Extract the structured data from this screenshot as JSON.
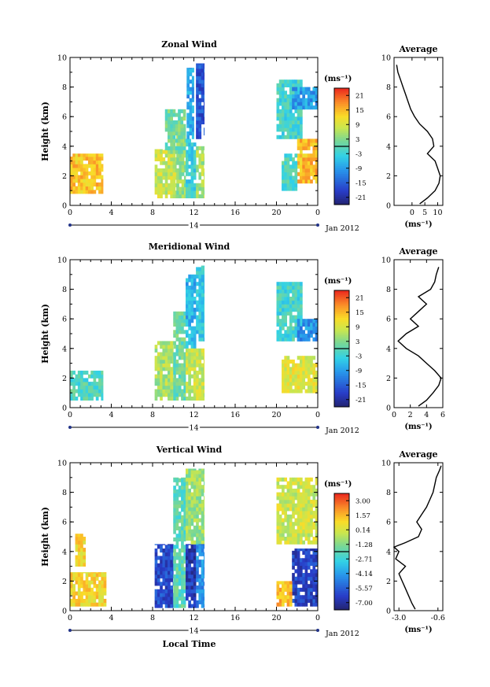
{
  "chart_data": [
    {
      "type": "heatmap",
      "title": "Zonal Wind",
      "ylabel": "Height (km)",
      "ylim": [
        0,
        10
      ],
      "yticks": [
        "0",
        "2",
        "4",
        "6",
        "8",
        "10"
      ],
      "xlim": [
        0,
        24
      ],
      "xticks": [
        "0",
        "4",
        "8",
        "12",
        "16",
        "20",
        "0"
      ],
      "day_label": "14",
      "date_label": "Jan 2012",
      "colorbar": {
        "unit": "(ms⁻¹)",
        "ticks": [
          "21",
          "15",
          "9",
          "3",
          "-3",
          "-9",
          "-15",
          "-21"
        ],
        "range": [
          -24,
          24
        ]
      },
      "regions": [
        {
          "t": [
            0,
            3.2
          ],
          "h": [
            0.8,
            3.5
          ],
          "value": 14
        },
        {
          "t": [
            8.2,
            10.3
          ],
          "h": [
            0.5,
            3.8
          ],
          "value": 8
        },
        {
          "t": [
            10.3,
            11.2
          ],
          "h": [
            0.5,
            5.5
          ],
          "value": 4
        },
        {
          "t": [
            11.2,
            12.2
          ],
          "h": [
            0.5,
            4.5
          ],
          "value": -3
        },
        {
          "t": [
            9.2,
            11.2
          ],
          "h": [
            3.5,
            6.5
          ],
          "value": 2
        },
        {
          "t": [
            11.3,
            12.0
          ],
          "h": [
            4.5,
            9.3
          ],
          "value": -8
        },
        {
          "t": [
            12.2,
            13.0
          ],
          "h": [
            4.5,
            9.6
          ],
          "value": -16
        },
        {
          "t": [
            12.2,
            13.0
          ],
          "h": [
            0.5,
            4.0
          ],
          "value": 6
        },
        {
          "t": [
            20.0,
            22.5
          ],
          "h": [
            4.5,
            8.5
          ],
          "value": -2
        },
        {
          "t": [
            21.5,
            24.0
          ],
          "h": [
            6.5,
            8.0
          ],
          "value": -9
        },
        {
          "t": [
            22.0,
            24.0
          ],
          "h": [
            1.5,
            4.5
          ],
          "value": 15
        },
        {
          "t": [
            20.5,
            22.0
          ],
          "h": [
            1.0,
            3.5
          ],
          "value": -1
        }
      ],
      "profile": {
        "xlabel": "(ms⁻¹)",
        "title": "Average",
        "xlim": [
          -7,
          12
        ],
        "xticks": [
          0,
          5,
          10
        ],
        "xtick_labels": [
          "0",
          "5",
          "10"
        ],
        "height": [
          0.1,
          0.5,
          1.0,
          1.5,
          2.0,
          2.5,
          3.0,
          3.5,
          4.0,
          4.5,
          5.0,
          5.5,
          6.0,
          6.5,
          7.0,
          7.5,
          8.0,
          8.5,
          9.0,
          9.5
        ],
        "value": [
          3.0,
          6.0,
          9.0,
          10.5,
          11.0,
          10.0,
          9.0,
          6.0,
          8.5,
          8.0,
          6.0,
          3.0,
          1.0,
          -0.5,
          -1.5,
          -2.5,
          -3.5,
          -4.5,
          -5.5,
          -6.0
        ]
      }
    },
    {
      "type": "heatmap",
      "title": "Meridional Wind",
      "ylabel": "Height (km)",
      "ylim": [
        0,
        10
      ],
      "yticks": [
        "0",
        "2",
        "4",
        "6",
        "8",
        "10"
      ],
      "xlim": [
        0,
        24
      ],
      "xticks": [
        "0",
        "4",
        "8",
        "12",
        "16",
        "20",
        "0"
      ],
      "day_label": "14",
      "date_label": "Jan 2012",
      "colorbar": {
        "unit": "(ms⁻¹)",
        "ticks": [
          "21",
          "15",
          "9",
          "3",
          "-3",
          "-9",
          "-15",
          "-21"
        ],
        "range": [
          -24,
          24
        ]
      },
      "regions": [
        {
          "t": [
            0,
            3.2
          ],
          "h": [
            0.5,
            2.5
          ],
          "value": -1
        },
        {
          "t": [
            8.2,
            10.0
          ],
          "h": [
            0.5,
            4.5
          ],
          "value": 6
        },
        {
          "t": [
            10.0,
            11.2
          ],
          "h": [
            0.5,
            6.5
          ],
          "value": 1
        },
        {
          "t": [
            11.2,
            12.2
          ],
          "h": [
            4.0,
            9.0
          ],
          "value": -7
        },
        {
          "t": [
            12.2,
            13.0
          ],
          "h": [
            4.5,
            9.6
          ],
          "value": -4
        },
        {
          "t": [
            11.2,
            13.0
          ],
          "h": [
            0.5,
            4.0
          ],
          "value": 8
        },
        {
          "t": [
            20.0,
            22.5
          ],
          "h": [
            4.5,
            8.5
          ],
          "value": -2
        },
        {
          "t": [
            22.0,
            24.0
          ],
          "h": [
            4.5,
            6.0
          ],
          "value": -10
        },
        {
          "t": [
            20.5,
            24.0
          ],
          "h": [
            1.0,
            3.5
          ],
          "value": 10
        }
      ],
      "profile": {
        "xlabel": "(ms⁻¹)",
        "title": "Average",
        "xlim": [
          0,
          6
        ],
        "xticks": [
          0,
          2,
          4,
          6
        ],
        "xtick_labels": [
          "0",
          "2",
          "4",
          "6"
        ],
        "height": [
          0.1,
          0.5,
          1.0,
          1.5,
          2.0,
          2.5,
          3.0,
          3.5,
          4.0,
          4.5,
          5.0,
          5.5,
          6.0,
          6.5,
          7.0,
          7.5,
          8.0,
          8.5,
          9.0,
          9.5
        ],
        "value": [
          3.0,
          4.0,
          4.8,
          5.5,
          5.8,
          5.0,
          4.0,
          3.0,
          1.5,
          0.5,
          1.5,
          3.0,
          2.0,
          3.0,
          4.0,
          3.0,
          4.5,
          5.0,
          5.2,
          5.5
        ]
      }
    },
    {
      "type": "heatmap",
      "title": "Vertical Wind",
      "ylabel": "Height (km)",
      "xlabel": "Local Time",
      "ylim": [
        0,
        10
      ],
      "yticks": [
        "0",
        "2",
        "4",
        "6",
        "8",
        "10"
      ],
      "xlim": [
        0,
        24
      ],
      "xticks": [
        "0",
        "4",
        "8",
        "12",
        "16",
        "20",
        "0"
      ],
      "day_label": "14",
      "date_label": "Jan 2012",
      "colorbar": {
        "unit": "(ms⁻¹)",
        "ticks": [
          "3.00",
          "1.57",
          "0.14",
          "-1.28",
          "-2.71",
          "-4.14",
          "-5.57",
          "-7.00"
        ],
        "range": [
          -7.7,
          3.7
        ]
      },
      "regions": [
        {
          "t": [
            0,
            3.5
          ],
          "h": [
            0.3,
            2.6
          ],
          "value": 0.9
        },
        {
          "t": [
            0.5,
            1.5
          ],
          "h": [
            3.0,
            5.2
          ],
          "value": 0.9
        },
        {
          "t": [
            8.2,
            10.0
          ],
          "h": [
            0.2,
            4.5
          ],
          "value": -6.0
        },
        {
          "t": [
            10.0,
            11.2
          ],
          "h": [
            0.2,
            9.0
          ],
          "value": -2.0
        },
        {
          "t": [
            11.2,
            12.2
          ],
          "h": [
            0.2,
            4.5
          ],
          "value": -6.5
        },
        {
          "t": [
            11.2,
            13.0
          ],
          "h": [
            4.5,
            9.6
          ],
          "value": -0.8
        },
        {
          "t": [
            12.2,
            13.0
          ],
          "h": [
            0.2,
            4.5
          ],
          "value": -4.5
        },
        {
          "t": [
            20.0,
            24.0
          ],
          "h": [
            4.5,
            9.0
          ],
          "value": 0.0
        },
        {
          "t": [
            21.5,
            24.0
          ],
          "h": [
            0.3,
            4.2
          ],
          "value": -6.2
        },
        {
          "t": [
            20.0,
            21.5
          ],
          "h": [
            0.3,
            2.0
          ],
          "value": 1.5
        }
      ],
      "profile": {
        "xlabel": "(ms⁻¹)",
        "title": "Average",
        "xlim": [
          -3.3,
          -0.3
        ],
        "xticks": [
          -3.0,
          -0.6
        ],
        "xtick_labels": [
          "-3.0",
          "-0.6"
        ],
        "height": [
          0.1,
          0.5,
          1.0,
          1.5,
          2.0,
          2.5,
          3.0,
          3.5,
          4.0,
          4.3,
          4.6,
          5.0,
          5.5,
          6.0,
          6.5,
          7.0,
          7.5,
          8.0,
          8.5,
          9.0,
          9.5,
          9.8
        ],
        "value": [
          -2.0,
          -2.2,
          -2.4,
          -2.6,
          -2.8,
          -3.0,
          -2.6,
          -3.2,
          -3.0,
          -3.3,
          -2.6,
          -1.8,
          -1.6,
          -1.9,
          -1.6,
          -1.3,
          -1.1,
          -0.9,
          -0.8,
          -0.7,
          -0.5,
          -0.4
        ]
      }
    }
  ]
}
